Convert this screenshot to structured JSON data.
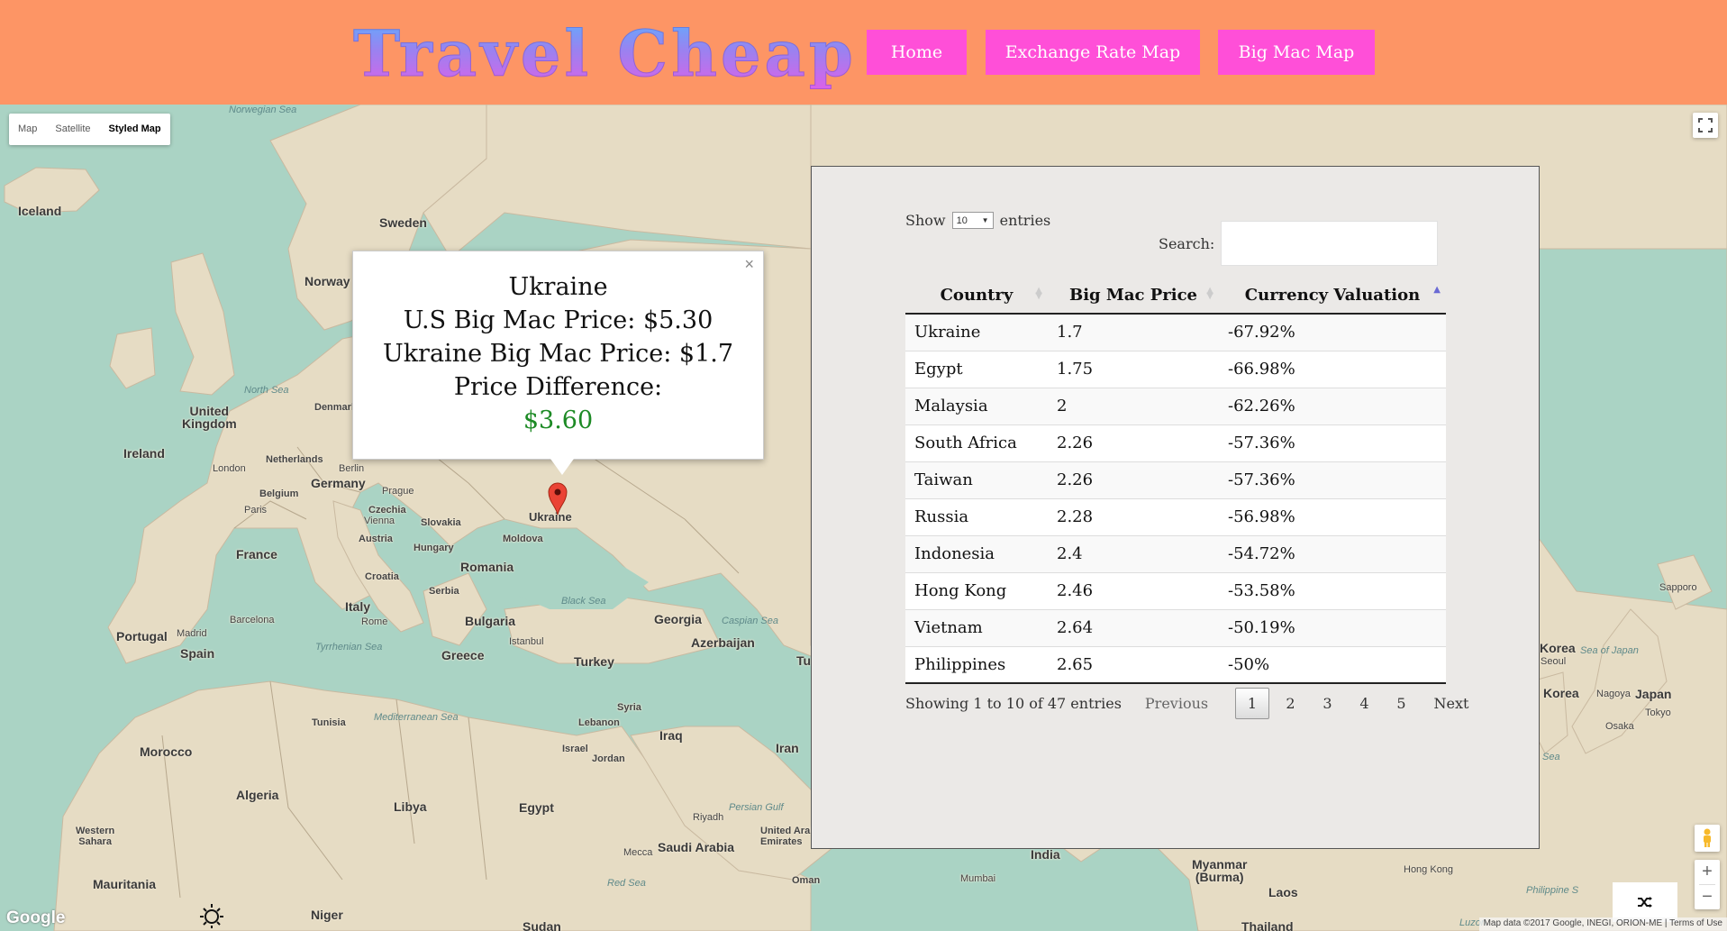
{
  "header": {
    "logo": "Travel Cheap",
    "nav": [
      "Home",
      "Exchange Rate Map",
      "Big Mac Map"
    ]
  },
  "map": {
    "type_controls": [
      "Map",
      "Satellite",
      "Styled Map"
    ],
    "active_type": "Styled Map",
    "labels": {
      "iceland": "Iceland",
      "sweden": "Sweden",
      "norway": "Norway",
      "uk": "United\nKingdom",
      "ireland": "Ireland",
      "london": "London",
      "netherlands": "Netherlands",
      "denmark": "Denmark",
      "berlin": "Berlin",
      "germany": "Germany",
      "belgium": "Belgium",
      "paris": "Paris",
      "prague": "Prague",
      "czechia": "Czechia",
      "vienna": "Vienna",
      "slovakia": "Slovakia",
      "austria": "Austria",
      "hungary": "Hungary",
      "moldova": "Moldova",
      "ukraine": "Ukraine",
      "france": "France",
      "romania": "Romania",
      "croatia": "Croatia",
      "serbia": "Serbia",
      "italy": "Italy",
      "rome": "Rome",
      "bulgaria": "Bulgaria",
      "black_sea": "Black Sea",
      "georgia": "Georgia",
      "caspian": "Caspian Sea",
      "azerbaijan": "Azerbaijan",
      "barcelona": "Barcelona",
      "madrid": "Madrid",
      "portugal": "Portugal",
      "spain": "Spain",
      "istanbul": "Istanbul",
      "turkey": "Turkey",
      "tyrrhenian": "Tyrrhenian Sea",
      "greece": "Greece",
      "tunisia": "Tunisia",
      "med_sea": "Mediterranean Sea",
      "syria": "Syria",
      "lebanon": "Lebanon",
      "iraq": "Iraq",
      "israel": "Israel",
      "jordan": "Jordan",
      "iran": "Iran",
      "morocco": "Morocco",
      "algeria": "Algeria",
      "libya": "Libya",
      "egypt": "Egypt",
      "persian_gulf": "Persian Gulf",
      "riyadh": "Riyadh",
      "uae": "United Arab\nEmirates",
      "western_sahara": "Western\nSahara",
      "mecca": "Mecca",
      "saudi": "Saudi Arabia",
      "red_sea": "Red Sea",
      "oman": "Oman",
      "mauritania": "Mauritania",
      "niger": "Niger",
      "sudan": "Sudan",
      "india": "India",
      "mumbai": "Mumbai",
      "myanmar": "Myanmar\n(Burma)",
      "laos": "Laos",
      "thailand": "Thailand",
      "hong_kong": "Hong Kong",
      "sapporo": "Sapporo",
      "korea_n": "Korea",
      "seoul": "Seoul",
      "sea_japan": "Sea of Japan",
      "korea_s": "Korea",
      "nagoya": "Nagoya",
      "japan": "Japan",
      "tokyo": "Tokyo",
      "osaka": "Osaka",
      "norwegian_sea": "Norwegian Sea",
      "north_sea": "North Sea",
      "philippine_sea": "Philippine S",
      "luzon": "Luzon",
      "tu": "Tu",
      "sea_frag": "Sea"
    },
    "google": "Google",
    "attribution": "Map data ©2017 Google, INEGI, ORION-ME  |  Terms of Use"
  },
  "infowindow": {
    "country": "Ukraine",
    "us_price": "U.S Big Mac Price: $5.30",
    "local_price": "Ukraine Big Mac Price: $1.7",
    "diff_label": "Price Difference:",
    "diff_value": "$3.60",
    "close": "×"
  },
  "table": {
    "show_prefix": "Show",
    "show_value": "10",
    "show_suffix": "entries",
    "search_label": "Search:",
    "search_value": "",
    "columns": [
      "Country",
      "Big Mac Price",
      "Currency Valuation"
    ],
    "rows": [
      [
        "Ukraine",
        "1.7",
        "-67.92%"
      ],
      [
        "Egypt",
        "1.75",
        "-66.98%"
      ],
      [
        "Malaysia",
        "2",
        "-62.26%"
      ],
      [
        "South Africa",
        "2.26",
        "-57.36%"
      ],
      [
        "Taiwan",
        "2.26",
        "-57.36%"
      ],
      [
        "Russia",
        "2.28",
        "-56.98%"
      ],
      [
        "Indonesia",
        "2.4",
        "-54.72%"
      ],
      [
        "Hong Kong",
        "2.46",
        "-53.58%"
      ],
      [
        "Vietnam",
        "2.64",
        "-50.19%"
      ],
      [
        "Philippines",
        "2.65",
        "-50%"
      ]
    ],
    "info": "Showing 1 to 10 of 47 entries",
    "pager": {
      "previous": "Previous",
      "pages": [
        "1",
        "2",
        "3",
        "4",
        "5"
      ],
      "current": "1",
      "next": "Next"
    }
  },
  "colors": {
    "header": "#fd9565",
    "nav": "#ff4fd8",
    "land": "#e6dcc4",
    "water": "#aad3c4",
    "green": "#1d8a25"
  }
}
